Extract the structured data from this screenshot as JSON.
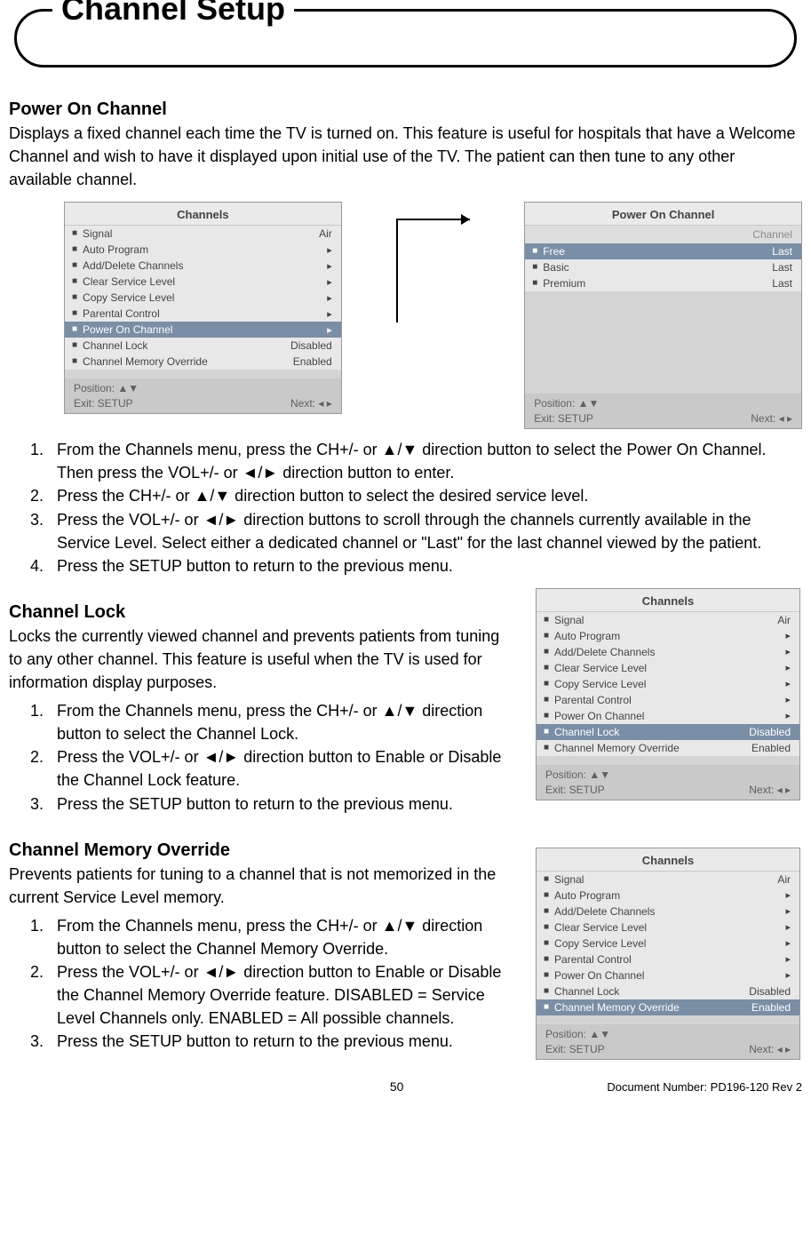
{
  "pageTitle": "Channel Setup",
  "pageNumber": "50",
  "docNumber": "Document Number: PD196-120 Rev 2",
  "arrows": {
    "up": "▲",
    "down": "▼",
    "left": "◄",
    "right": "►",
    "updown": "▲/▼",
    "leftright": "◄/►",
    "smallRight": "▸",
    "smallLR": "◂ ▸",
    "udPair": "▲▼"
  },
  "sec1": {
    "title": "Power On Channel",
    "intro": "Displays a fixed channel each time the TV is turned on. This feature is useful for hospitals that have a Welcome Channel and wish to have it displayed upon initial use of the TV. The patient can then tune to any other available channel.",
    "steps": [
      "From the Channels menu, press the CH+/- or ▲/▼ direction button to select the Power On Channel. Then press the VOL+/- or ◄/► direction button to enter.",
      "Press the CH+/- or ▲/▼ direction button to select the desired service level.",
      "Press the VOL+/- or ◄/► direction buttons to scroll through the channels currently available in the Service Level. Select either a dedicated channel or \"Last\" for the last channel viewed by the patient.",
      "Press the SETUP button to return to the previous menu."
    ]
  },
  "sec2": {
    "title": "Channel Lock",
    "intro": "Locks the currently viewed channel and prevents patients from tuning to any other channel. This feature is useful when the TV is used for information display purposes.",
    "steps": [
      "From the Channels menu, press the CH+/- or ▲/▼ direction button to select the Channel Lock.",
      "Press the VOL+/- or ◄/► direction button to Enable or Disable the Channel Lock feature.",
      "Press the SETUP button to return to the previous menu."
    ]
  },
  "sec3": {
    "title": "Channel Memory Override",
    "intro": "Prevents patients for tuning to a channel that is not memorized in the current Service Level memory.",
    "steps": [
      "From the Channels menu, press the CH+/- or ▲/▼ direction button to select the Channel Memory Override.",
      "Press the VOL+/- or ◄/► direction button to Enable or Disable the Channel Memory Override feature. DISABLED = Service Level Channels only. ENABLED = All possible channels.",
      "Press the SETUP button to return to the previous menu."
    ]
  },
  "menuChannels": {
    "title": "Channels",
    "items": [
      {
        "label": "Signal",
        "value": "Air",
        "hl": false
      },
      {
        "label": "Auto Program",
        "value": "▸",
        "hl": false
      },
      {
        "label": "Add/Delete Channels",
        "value": "▸",
        "hl": false
      },
      {
        "label": "Clear Service Level",
        "value": "▸",
        "hl": false
      },
      {
        "label": "Copy Service Level",
        "value": "▸",
        "hl": false
      },
      {
        "label": "Parental Control",
        "value": "▸",
        "hl": false
      },
      {
        "label": "Power On Channel",
        "value": "▸",
        "hl": true
      },
      {
        "label": "Channel Lock",
        "value": "Disabled",
        "hl": false
      },
      {
        "label": "Channel Memory Override",
        "value": "Enabled",
        "hl": false
      }
    ],
    "footerPos": "Position: ▲▼",
    "footerExit": "Exit: SETUP",
    "footerNext": "Next: ◂ ▸"
  },
  "menuPowerOn": {
    "title": "Power On Channel",
    "subhead": "Channel",
    "items": [
      {
        "label": "Free",
        "value": "Last",
        "hl": true
      },
      {
        "label": "Basic",
        "value": "Last",
        "hl": false
      },
      {
        "label": "Premium",
        "value": "Last",
        "hl": false
      }
    ],
    "footerPos": "Position: ▲▼",
    "footerExit": "Exit: SETUP",
    "footerNext": "Next: ◂ ▸"
  },
  "menuLock": {
    "title": "Channels",
    "items": [
      {
        "label": "Signal",
        "value": "Air",
        "hl": false
      },
      {
        "label": "Auto Program",
        "value": "▸",
        "hl": false
      },
      {
        "label": "Add/Delete Channels",
        "value": "▸",
        "hl": false
      },
      {
        "label": "Clear Service Level",
        "value": "▸",
        "hl": false
      },
      {
        "label": "Copy Service Level",
        "value": "▸",
        "hl": false
      },
      {
        "label": "Parental Control",
        "value": "▸",
        "hl": false
      },
      {
        "label": "Power On Channel",
        "value": "▸",
        "hl": false
      },
      {
        "label": "Channel Lock",
        "value": "Disabled",
        "hl": true
      },
      {
        "label": "Channel Memory Override",
        "value": "Enabled",
        "hl": false
      }
    ],
    "footerPos": "Position: ▲▼",
    "footerExit": "Exit: SETUP",
    "footerNext": "Next: ◂ ▸"
  },
  "menuOverride": {
    "title": "Channels",
    "items": [
      {
        "label": "Signal",
        "value": "Air",
        "hl": false
      },
      {
        "label": "Auto Program",
        "value": "▸",
        "hl": false
      },
      {
        "label": "Add/Delete Channels",
        "value": "▸",
        "hl": false
      },
      {
        "label": "Clear Service Level",
        "value": "▸",
        "hl": false
      },
      {
        "label": "Copy Service Level",
        "value": "▸",
        "hl": false
      },
      {
        "label": "Parental Control",
        "value": "▸",
        "hl": false
      },
      {
        "label": "Power On Channel",
        "value": "▸",
        "hl": false
      },
      {
        "label": "Channel Lock",
        "value": "Disabled",
        "hl": false
      },
      {
        "label": "Channel Memory Override",
        "value": "Enabled",
        "hl": true
      }
    ],
    "footerPos": "Position: ▲▼",
    "footerExit": "Exit: SETUP",
    "footerNext": "Next: ◂ ▸"
  }
}
